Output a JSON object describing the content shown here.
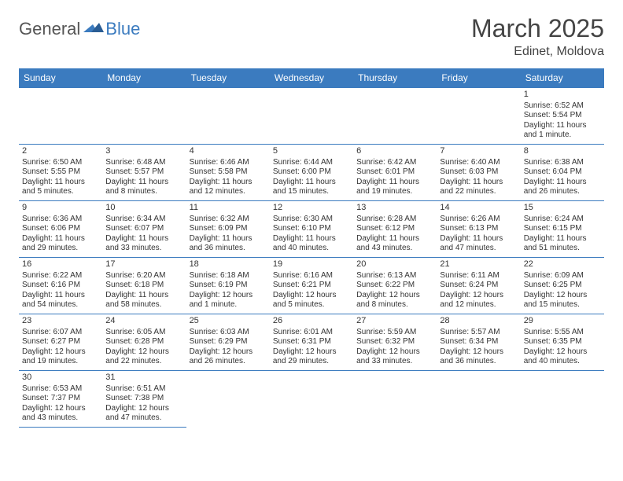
{
  "logo": {
    "general": "General",
    "blue": "Blue"
  },
  "title": "March 2025",
  "location": "Edinet, Moldova",
  "colors": {
    "accent": "#3b7bbf",
    "text": "#333333",
    "bg": "#ffffff"
  },
  "weekdays": [
    "Sunday",
    "Monday",
    "Tuesday",
    "Wednesday",
    "Thursday",
    "Friday",
    "Saturday"
  ],
  "weeks": [
    [
      null,
      null,
      null,
      null,
      null,
      null,
      {
        "n": "1",
        "sr": "Sunrise: 6:52 AM",
        "ss": "Sunset: 5:54 PM",
        "dl": "Daylight: 11 hours and 1 minute."
      }
    ],
    [
      {
        "n": "2",
        "sr": "Sunrise: 6:50 AM",
        "ss": "Sunset: 5:55 PM",
        "dl": "Daylight: 11 hours and 5 minutes."
      },
      {
        "n": "3",
        "sr": "Sunrise: 6:48 AM",
        "ss": "Sunset: 5:57 PM",
        "dl": "Daylight: 11 hours and 8 minutes."
      },
      {
        "n": "4",
        "sr": "Sunrise: 6:46 AM",
        "ss": "Sunset: 5:58 PM",
        "dl": "Daylight: 11 hours and 12 minutes."
      },
      {
        "n": "5",
        "sr": "Sunrise: 6:44 AM",
        "ss": "Sunset: 6:00 PM",
        "dl": "Daylight: 11 hours and 15 minutes."
      },
      {
        "n": "6",
        "sr": "Sunrise: 6:42 AM",
        "ss": "Sunset: 6:01 PM",
        "dl": "Daylight: 11 hours and 19 minutes."
      },
      {
        "n": "7",
        "sr": "Sunrise: 6:40 AM",
        "ss": "Sunset: 6:03 PM",
        "dl": "Daylight: 11 hours and 22 minutes."
      },
      {
        "n": "8",
        "sr": "Sunrise: 6:38 AM",
        "ss": "Sunset: 6:04 PM",
        "dl": "Daylight: 11 hours and 26 minutes."
      }
    ],
    [
      {
        "n": "9",
        "sr": "Sunrise: 6:36 AM",
        "ss": "Sunset: 6:06 PM",
        "dl": "Daylight: 11 hours and 29 minutes."
      },
      {
        "n": "10",
        "sr": "Sunrise: 6:34 AM",
        "ss": "Sunset: 6:07 PM",
        "dl": "Daylight: 11 hours and 33 minutes."
      },
      {
        "n": "11",
        "sr": "Sunrise: 6:32 AM",
        "ss": "Sunset: 6:09 PM",
        "dl": "Daylight: 11 hours and 36 minutes."
      },
      {
        "n": "12",
        "sr": "Sunrise: 6:30 AM",
        "ss": "Sunset: 6:10 PM",
        "dl": "Daylight: 11 hours and 40 minutes."
      },
      {
        "n": "13",
        "sr": "Sunrise: 6:28 AM",
        "ss": "Sunset: 6:12 PM",
        "dl": "Daylight: 11 hours and 43 minutes."
      },
      {
        "n": "14",
        "sr": "Sunrise: 6:26 AM",
        "ss": "Sunset: 6:13 PM",
        "dl": "Daylight: 11 hours and 47 minutes."
      },
      {
        "n": "15",
        "sr": "Sunrise: 6:24 AM",
        "ss": "Sunset: 6:15 PM",
        "dl": "Daylight: 11 hours and 51 minutes."
      }
    ],
    [
      {
        "n": "16",
        "sr": "Sunrise: 6:22 AM",
        "ss": "Sunset: 6:16 PM",
        "dl": "Daylight: 11 hours and 54 minutes."
      },
      {
        "n": "17",
        "sr": "Sunrise: 6:20 AM",
        "ss": "Sunset: 6:18 PM",
        "dl": "Daylight: 11 hours and 58 minutes."
      },
      {
        "n": "18",
        "sr": "Sunrise: 6:18 AM",
        "ss": "Sunset: 6:19 PM",
        "dl": "Daylight: 12 hours and 1 minute."
      },
      {
        "n": "19",
        "sr": "Sunrise: 6:16 AM",
        "ss": "Sunset: 6:21 PM",
        "dl": "Daylight: 12 hours and 5 minutes."
      },
      {
        "n": "20",
        "sr": "Sunrise: 6:13 AM",
        "ss": "Sunset: 6:22 PM",
        "dl": "Daylight: 12 hours and 8 minutes."
      },
      {
        "n": "21",
        "sr": "Sunrise: 6:11 AM",
        "ss": "Sunset: 6:24 PM",
        "dl": "Daylight: 12 hours and 12 minutes."
      },
      {
        "n": "22",
        "sr": "Sunrise: 6:09 AM",
        "ss": "Sunset: 6:25 PM",
        "dl": "Daylight: 12 hours and 15 minutes."
      }
    ],
    [
      {
        "n": "23",
        "sr": "Sunrise: 6:07 AM",
        "ss": "Sunset: 6:27 PM",
        "dl": "Daylight: 12 hours and 19 minutes."
      },
      {
        "n": "24",
        "sr": "Sunrise: 6:05 AM",
        "ss": "Sunset: 6:28 PM",
        "dl": "Daylight: 12 hours and 22 minutes."
      },
      {
        "n": "25",
        "sr": "Sunrise: 6:03 AM",
        "ss": "Sunset: 6:29 PM",
        "dl": "Daylight: 12 hours and 26 minutes."
      },
      {
        "n": "26",
        "sr": "Sunrise: 6:01 AM",
        "ss": "Sunset: 6:31 PM",
        "dl": "Daylight: 12 hours and 29 minutes."
      },
      {
        "n": "27",
        "sr": "Sunrise: 5:59 AM",
        "ss": "Sunset: 6:32 PM",
        "dl": "Daylight: 12 hours and 33 minutes."
      },
      {
        "n": "28",
        "sr": "Sunrise: 5:57 AM",
        "ss": "Sunset: 6:34 PM",
        "dl": "Daylight: 12 hours and 36 minutes."
      },
      {
        "n": "29",
        "sr": "Sunrise: 5:55 AM",
        "ss": "Sunset: 6:35 PM",
        "dl": "Daylight: 12 hours and 40 minutes."
      }
    ],
    [
      {
        "n": "30",
        "sr": "Sunrise: 6:53 AM",
        "ss": "Sunset: 7:37 PM",
        "dl": "Daylight: 12 hours and 43 minutes."
      },
      {
        "n": "31",
        "sr": "Sunrise: 6:51 AM",
        "ss": "Sunset: 7:38 PM",
        "dl": "Daylight: 12 hours and 47 minutes."
      },
      null,
      null,
      null,
      null,
      null
    ]
  ]
}
